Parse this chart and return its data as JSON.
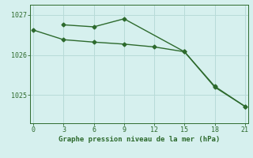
{
  "line1_x": [
    0,
    3,
    6,
    9,
    12,
    15,
    18,
    21
  ],
  "line1_y": [
    1026.62,
    1026.38,
    1026.32,
    1026.27,
    1026.2,
    1026.08,
    1025.22,
    1024.72
  ],
  "line2_x": [
    3,
    6,
    9,
    15,
    18,
    21
  ],
  "line2_y": [
    1026.75,
    1026.7,
    1026.9,
    1026.08,
    1025.2,
    1024.72
  ],
  "color": "#2d6a2d",
  "bg_color": "#d6f0ee",
  "grid_color": "#b8dbd8",
  "xlabel": "Graphe pression niveau de la mer (hPa)",
  "xticks": [
    0,
    3,
    6,
    9,
    12,
    15,
    18,
    21
  ],
  "yticks": [
    1025,
    1026,
    1027
  ],
  "ylim": [
    1024.3,
    1027.25
  ],
  "xlim": [
    -0.3,
    21.3
  ],
  "marker": "D",
  "markersize": 2.5,
  "linewidth": 1.0,
  "tick_fontsize": 6,
  "xlabel_fontsize": 6.5
}
